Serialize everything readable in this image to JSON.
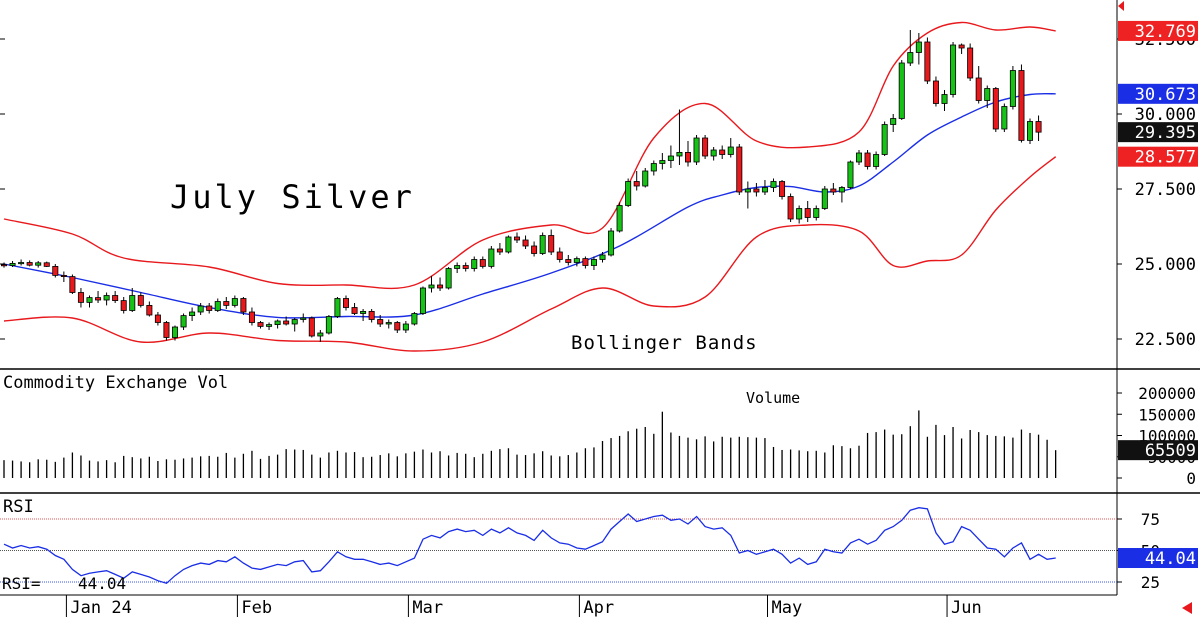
{
  "chart_data": {
    "type": "candlestick",
    "title": "July Silver",
    "panels": {
      "price": {
        "annotation": "Bollinger Bands",
        "yticks": [
          "22.500",
          "25.000",
          "27.500",
          "30.000",
          "32.500"
        ],
        "ylim": [
          21.5,
          33.8
        ],
        "markers": [
          {
            "label": "32.769",
            "value": 32.769,
            "color": "#ee2222",
            "text_color": "#ffffff"
          },
          {
            "label": "30.673",
            "value": 30.673,
            "color": "#1a2ee6",
            "text_color": "#ffffff"
          },
          {
            "label": "29.395",
            "value": 29.395,
            "color": "#111111",
            "text_color": "#ffffff"
          },
          {
            "label": "28.577",
            "value": 28.577,
            "color": "#ee2222",
            "text_color": "#ffffff"
          }
        ]
      },
      "volume": {
        "label": "Commodity Exchange Vol",
        "annotation": "Volume",
        "yticks": [
          "0",
          "50000",
          "100000",
          "150000",
          "200000"
        ],
        "ylim": [
          0,
          210000
        ],
        "marker": {
          "label": "65509",
          "value": 65509
        }
      },
      "rsi": {
        "label": "RSI",
        "value_label": "RSI=",
        "value": "44.04",
        "yticks": [
          "25",
          "50",
          "75"
        ],
        "ylim": [
          15,
          95
        ],
        "marker": {
          "label": "44.04",
          "value": 44.04
        }
      }
    },
    "x_labels": [
      "Jan 24",
      "Feb",
      "Mar",
      "Apr",
      "May",
      "Jun"
    ],
    "x_label_index": [
      8,
      28,
      48,
      68,
      90,
      111
    ],
    "candles": [
      [
        24.98,
        25.05,
        24.88,
        24.95
      ],
      [
        24.95,
        25.1,
        24.9,
        25.02
      ],
      [
        25.02,
        25.15,
        24.95,
        25.05
      ],
      [
        25.05,
        25.12,
        24.92,
        24.96
      ],
      [
        24.96,
        25.1,
        24.88,
        25.04
      ],
      [
        25.04,
        25.08,
        24.9,
        24.92
      ],
      [
        24.92,
        25.0,
        24.55,
        24.62
      ],
      [
        24.62,
        24.75,
        24.4,
        24.58
      ],
      [
        24.58,
        24.65,
        24.0,
        24.05
      ],
      [
        24.05,
        24.2,
        23.55,
        23.72
      ],
      [
        23.72,
        23.95,
        23.55,
        23.88
      ],
      [
        23.88,
        24.1,
        23.7,
        23.8
      ],
      [
        23.8,
        24.05,
        23.62,
        23.95
      ],
      [
        23.95,
        24.1,
        23.7,
        23.78
      ],
      [
        23.78,
        23.9,
        23.35,
        23.45
      ],
      [
        23.45,
        24.2,
        23.4,
        23.95
      ],
      [
        23.95,
        24.05,
        23.55,
        23.62
      ],
      [
        23.62,
        23.75,
        23.25,
        23.3
      ],
      [
        23.3,
        23.4,
        22.95,
        23.05
      ],
      [
        23.05,
        23.1,
        22.45,
        22.55
      ],
      [
        22.55,
        22.95,
        22.45,
        22.9
      ],
      [
        22.9,
        23.35,
        22.8,
        23.28
      ],
      [
        23.28,
        23.55,
        23.1,
        23.4
      ],
      [
        23.4,
        23.7,
        23.3,
        23.6
      ],
      [
        23.6,
        23.7,
        23.35,
        23.45
      ],
      [
        23.45,
        23.85,
        23.4,
        23.75
      ],
      [
        23.75,
        23.9,
        23.5,
        23.62
      ],
      [
        23.62,
        23.95,
        23.55,
        23.85
      ],
      [
        23.85,
        23.9,
        23.3,
        23.4
      ],
      [
        23.4,
        23.55,
        22.95,
        23.05
      ],
      [
        23.05,
        23.1,
        22.85,
        22.92
      ],
      [
        22.92,
        23.05,
        22.8,
        22.98
      ],
      [
        22.98,
        23.15,
        22.85,
        23.1
      ],
      [
        23.1,
        23.25,
        22.95,
        23.0
      ],
      [
        23.0,
        23.2,
        22.75,
        23.15
      ],
      [
        23.15,
        23.35,
        23.05,
        23.2
      ],
      [
        23.2,
        23.25,
        22.55,
        22.6
      ],
      [
        22.6,
        22.8,
        22.4,
        22.7
      ],
      [
        22.7,
        23.3,
        22.65,
        23.25
      ],
      [
        23.25,
        23.9,
        23.2,
        23.85
      ],
      [
        23.85,
        23.95,
        23.45,
        23.55
      ],
      [
        23.55,
        23.7,
        23.3,
        23.35
      ],
      [
        23.35,
        23.5,
        23.1,
        23.42
      ],
      [
        23.42,
        23.5,
        23.05,
        23.15
      ],
      [
        23.15,
        23.3,
        22.9,
        23.0
      ],
      [
        23.0,
        23.15,
        22.85,
        23.05
      ],
      [
        23.05,
        23.1,
        22.7,
        22.8
      ],
      [
        22.8,
        23.1,
        22.7,
        23.0
      ],
      [
        23.0,
        23.4,
        22.95,
        23.35
      ],
      [
        23.35,
        24.25,
        23.3,
        24.2
      ],
      [
        24.2,
        24.6,
        24.05,
        24.3
      ],
      [
        24.3,
        24.55,
        24.1,
        24.2
      ],
      [
        24.2,
        24.9,
        24.15,
        24.85
      ],
      [
        24.85,
        25.05,
        24.7,
        24.95
      ],
      [
        24.95,
        25.05,
        24.75,
        24.85
      ],
      [
        24.85,
        25.25,
        24.75,
        25.15
      ],
      [
        25.15,
        25.25,
        24.85,
        24.92
      ],
      [
        24.92,
        25.6,
        24.85,
        25.5
      ],
      [
        25.5,
        25.7,
        25.3,
        25.4
      ],
      [
        25.4,
        25.95,
        25.35,
        25.9
      ],
      [
        25.9,
        26.05,
        25.7,
        25.8
      ],
      [
        25.8,
        25.95,
        25.5,
        25.6
      ],
      [
        25.6,
        25.75,
        25.25,
        25.35
      ],
      [
        25.35,
        26.05,
        25.3,
        25.95
      ],
      [
        25.95,
        26.15,
        25.3,
        25.4
      ],
      [
        25.4,
        25.55,
        25.05,
        25.15
      ],
      [
        25.15,
        25.3,
        24.95,
        25.05
      ],
      [
        25.05,
        25.25,
        24.92,
        25.18
      ],
      [
        25.18,
        25.25,
        24.85,
        24.95
      ],
      [
        24.95,
        25.25,
        24.8,
        25.15
      ],
      [
        25.15,
        25.4,
        25.05,
        25.3
      ],
      [
        25.3,
        26.2,
        25.25,
        26.1
      ],
      [
        26.1,
        27.05,
        26.05,
        26.95
      ],
      [
        26.95,
        27.85,
        26.9,
        27.75
      ],
      [
        27.75,
        28.1,
        27.45,
        27.6
      ],
      [
        27.6,
        28.2,
        27.55,
        28.1
      ],
      [
        28.1,
        28.45,
        27.95,
        28.35
      ],
      [
        28.35,
        28.7,
        28.15,
        28.45
      ],
      [
        28.45,
        28.95,
        28.2,
        28.6
      ],
      [
        28.6,
        30.15,
        28.3,
        28.72
      ],
      [
        28.72,
        29.1,
        28.25,
        28.4
      ],
      [
        28.4,
        29.3,
        28.3,
        29.2
      ],
      [
        29.2,
        29.3,
        28.5,
        28.6
      ],
      [
        28.6,
        28.9,
        28.45,
        28.8
      ],
      [
        28.8,
        28.95,
        28.5,
        28.65
      ],
      [
        28.65,
        29.2,
        28.55,
        28.9
      ],
      [
        28.9,
        29.0,
        27.3,
        27.4
      ],
      [
        27.4,
        27.75,
        26.85,
        27.5
      ],
      [
        27.5,
        27.7,
        27.25,
        27.4
      ],
      [
        27.4,
        27.8,
        27.3,
        27.55
      ],
      [
        27.55,
        27.85,
        27.4,
        27.75
      ],
      [
        27.75,
        27.8,
        27.15,
        27.25
      ],
      [
        27.25,
        27.35,
        26.4,
        26.5
      ],
      [
        26.5,
        26.95,
        26.35,
        26.85
      ],
      [
        26.85,
        27.1,
        26.4,
        26.55
      ],
      [
        26.55,
        26.95,
        26.45,
        26.85
      ],
      [
        26.85,
        27.6,
        26.8,
        27.5
      ],
      [
        27.5,
        27.7,
        27.3,
        27.4
      ],
      [
        27.4,
        27.6,
        27.05,
        27.55
      ],
      [
        27.55,
        28.45,
        27.5,
        28.4
      ],
      [
        28.4,
        28.8,
        28.3,
        28.7
      ],
      [
        28.7,
        28.8,
        28.15,
        28.25
      ],
      [
        28.25,
        28.75,
        28.15,
        28.65
      ],
      [
        28.65,
        29.75,
        28.6,
        29.65
      ],
      [
        29.65,
        30.0,
        29.4,
        29.85
      ],
      [
        29.85,
        31.8,
        29.8,
        31.7
      ],
      [
        31.7,
        32.8,
        31.6,
        32.05
      ],
      [
        32.05,
        32.7,
        31.65,
        32.4
      ],
      [
        32.4,
        32.55,
        31.0,
        31.1
      ],
      [
        31.1,
        31.25,
        30.25,
        30.35
      ],
      [
        30.35,
        30.8,
        30.1,
        30.65
      ],
      [
        30.65,
        32.4,
        30.55,
        32.3
      ],
      [
        32.3,
        32.35,
        32.0,
        32.2
      ],
      [
        32.2,
        32.35,
        31.1,
        31.2
      ],
      [
        31.2,
        31.6,
        30.35,
        30.45
      ],
      [
        30.45,
        30.95,
        30.2,
        30.85
      ],
      [
        30.85,
        30.9,
        29.4,
        29.5
      ],
      [
        29.5,
        30.35,
        29.4,
        30.25
      ],
      [
        30.25,
        31.6,
        30.15,
        31.45
      ],
      [
        31.45,
        31.65,
        29.05,
        29.12
      ],
      [
        29.12,
        29.85,
        29.0,
        29.75
      ],
      [
        29.75,
        29.95,
        29.1,
        29.395
      ]
    ],
    "bollinger_middle": [
      [
        0,
        25.0
      ],
      [
        8,
        24.55
      ],
      [
        16,
        24.05
      ],
      [
        24,
        23.55
      ],
      [
        32,
        23.22
      ],
      [
        40,
        23.25
      ],
      [
        48,
        23.3
      ],
      [
        56,
        24.0
      ],
      [
        64,
        24.7
      ],
      [
        72,
        25.6
      ],
      [
        80,
        26.9
      ],
      [
        84,
        27.3
      ],
      [
        88,
        27.55
      ],
      [
        92,
        27.58
      ],
      [
        96,
        27.4
      ],
      [
        100,
        27.6
      ],
      [
        104,
        28.4
      ],
      [
        108,
        29.3
      ],
      [
        112,
        29.9
      ],
      [
        116,
        30.4
      ],
      [
        120,
        30.65
      ],
      [
        123,
        30.673
      ]
    ],
    "bollinger_upper": [
      [
        0,
        26.5
      ],
      [
        8,
        26.0
      ],
      [
        14,
        25.2
      ],
      [
        24,
        24.9
      ],
      [
        32,
        24.35
      ],
      [
        40,
        24.3
      ],
      [
        48,
        24.3
      ],
      [
        56,
        25.8
      ],
      [
        64,
        26.3
      ],
      [
        70,
        26.2
      ],
      [
        76,
        29.2
      ],
      [
        82,
        30.35
      ],
      [
        88,
        29.1
      ],
      [
        94,
        28.9
      ],
      [
        100,
        29.4
      ],
      [
        104,
        31.6
      ],
      [
        108,
        32.7
      ],
      [
        112,
        33.05
      ],
      [
        116,
        32.8
      ],
      [
        120,
        32.9
      ],
      [
        123,
        32.769
      ]
    ],
    "bollinger_lower": [
      [
        0,
        23.1
      ],
      [
        8,
        23.2
      ],
      [
        16,
        22.4
      ],
      [
        24,
        22.7
      ],
      [
        32,
        22.45
      ],
      [
        40,
        22.4
      ],
      [
        48,
        22.1
      ],
      [
        56,
        22.4
      ],
      [
        64,
        23.5
      ],
      [
        70,
        24.2
      ],
      [
        76,
        23.6
      ],
      [
        82,
        23.9
      ],
      [
        88,
        25.9
      ],
      [
        94,
        26.3
      ],
      [
        100,
        26.1
      ],
      [
        104,
        24.95
      ],
      [
        108,
        25.1
      ],
      [
        112,
        25.3
      ],
      [
        116,
        26.8
      ],
      [
        120,
        27.9
      ],
      [
        123,
        28.577
      ]
    ],
    "volume": [
      42000,
      41000,
      39000,
      37000,
      44000,
      43000,
      38000,
      48000,
      60000,
      53000,
      41000,
      39000,
      42000,
      37000,
      52000,
      49000,
      46000,
      50000,
      40000,
      44000,
      43000,
      46000,
      48000,
      51000,
      52000,
      50000,
      59000,
      48000,
      57000,
      64000,
      45000,
      52000,
      55000,
      68000,
      67000,
      66000,
      55000,
      48000,
      60000,
      64000,
      60000,
      61000,
      49000,
      50000,
      54000,
      58000,
      51000,
      58000,
      62000,
      67000,
      60000,
      63000,
      53000,
      59000,
      57000,
      49000,
      57000,
      64000,
      68000,
      70000,
      55000,
      54000,
      58000,
      63000,
      53000,
      51000,
      54000,
      60000,
      70000,
      72000,
      87000,
      94000,
      99000,
      110000,
      116000,
      120000,
      104000,
      156000,
      107000,
      99000,
      95000,
      91000,
      98000,
      86000,
      97000,
      95000,
      97000,
      96000,
      95000,
      94000,
      73000,
      66000,
      67000,
      65000,
      63000,
      64000,
      60000,
      77000,
      75000,
      70000,
      76000,
      106000,
      108000,
      114000,
      102000,
      103000,
      122000,
      159000,
      97000,
      125000,
      101000,
      120000,
      93000,
      113000,
      108000,
      101000,
      99000,
      98000,
      95000,
      114000,
      106000,
      102000,
      90000,
      65509
    ],
    "rsi": [
      55,
      52,
      54,
      52,
      53,
      51,
      46,
      43,
      35,
      30,
      32,
      33,
      34,
      31,
      28,
      33,
      31,
      29,
      26,
      24,
      30,
      35,
      38,
      40,
      39,
      42,
      41,
      45,
      40,
      36,
      35,
      37,
      39,
      38,
      41,
      42,
      33,
      34,
      41,
      49,
      45,
      43,
      43,
      41,
      39,
      40,
      38,
      41,
      44,
      59,
      62,
      60,
      65,
      67,
      65,
      66,
      62,
      67,
      64,
      68,
      64,
      62,
      58,
      66,
      60,
      56,
      55,
      52,
      51,
      54,
      57,
      67,
      73,
      79,
      73,
      75,
      77,
      78,
      74,
      75,
      71,
      77,
      69,
      67,
      68,
      62,
      48,
      50,
      47,
      49,
      51,
      47,
      40,
      44,
      39,
      41,
      51,
      49,
      48,
      56,
      59,
      55,
      58,
      66,
      69,
      74,
      82,
      84,
      83,
      64,
      55,
      57,
      69,
      66,
      59,
      52,
      51,
      45,
      52,
      56,
      43,
      47,
      43,
      44.04
    ],
    "rsi_overbought": 75,
    "rsi_oversold": 25,
    "rsi_midline": 50
  }
}
